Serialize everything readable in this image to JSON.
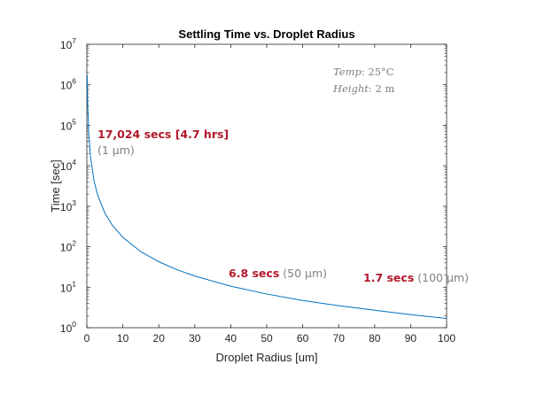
{
  "chart_data": {
    "type": "line",
    "title": "Settling Time vs. Droplet Radius",
    "xlabel": "Droplet Radius [um]",
    "ylabel": "Time [sec]",
    "xlim": [
      0,
      100
    ],
    "ylim": [
      1,
      10000000
    ],
    "yscale": "log",
    "grid": false,
    "x_ticks": [
      "0",
      "10",
      "20",
      "30",
      "40",
      "50",
      "60",
      "70",
      "80",
      "90",
      "100"
    ],
    "y_ticks": [
      {
        "base": "10",
        "exp": "0"
      },
      {
        "base": "10",
        "exp": "1"
      },
      {
        "base": "10",
        "exp": "2"
      },
      {
        "base": "10",
        "exp": "3"
      },
      {
        "base": "10",
        "exp": "4"
      },
      {
        "base": "10",
        "exp": "5"
      },
      {
        "base": "10",
        "exp": "6"
      },
      {
        "base": "10",
        "exp": "7"
      }
    ],
    "series": [
      {
        "color": "#0072BD",
        "model": "t = 17024 / r^2",
        "x": [
          0.1,
          0.2,
          0.5,
          1,
          2,
          3,
          5,
          7,
          10,
          15,
          20,
          25,
          30,
          40,
          50,
          60,
          70,
          80,
          90,
          100
        ],
        "y": [
          1702400,
          425600,
          68096,
          17024,
          4256,
          1891.6,
          681,
          347.4,
          170.2,
          75.7,
          42.6,
          27.2,
          18.9,
          10.6,
          6.8,
          4.7,
          3.5,
          2.7,
          2.1,
          1.7
        ]
      }
    ],
    "annotations": [
      {
        "value": "17,024 secs [4.7 hrs]",
        "detail": "(1 µm)",
        "x": 1,
        "y": 17024
      },
      {
        "value": "6.8 secs",
        "detail": "(50 µm)",
        "x": 50,
        "y": 6.8
      },
      {
        "value": "1.7 secs",
        "detail": "(100 µm)",
        "x": 100,
        "y": 1.7
      }
    ],
    "conditions": [
      {
        "label": "Temp",
        "value": "25°C"
      },
      {
        "label": "Height",
        "value": "2 m"
      }
    ]
  }
}
